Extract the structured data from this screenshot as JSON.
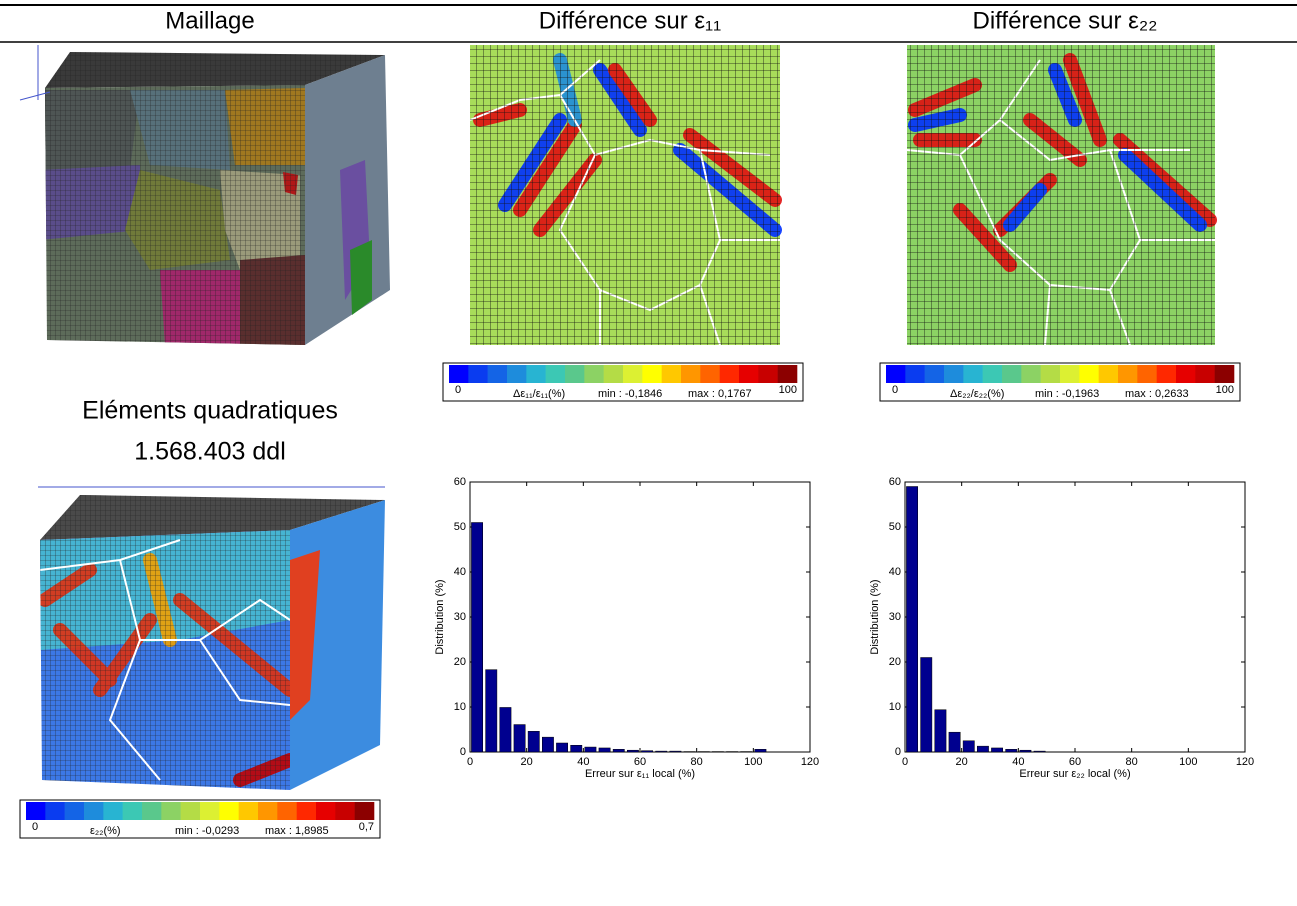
{
  "header": {
    "columns": [
      "Maillage",
      "Différence sur ε₁₁",
      "Différence sur ε₂₂"
    ]
  },
  "mesh_label": {
    "line1": "Eléments quadratiques",
    "line2": "1.568.403 ddl"
  },
  "colorbar_colors": [
    "#0000ff",
    "#0a3cf0",
    "#1464e6",
    "#1e8cdc",
    "#28b4d2",
    "#3cc8b4",
    "#5ac88c",
    "#8cd264",
    "#b4dc46",
    "#dcf032",
    "#ffff00",
    "#ffc800",
    "#ff9600",
    "#ff6400",
    "#ff2800",
    "#e60000",
    "#c80000",
    "#8c0000"
  ],
  "colorbars": [
    {
      "min_label": "0",
      "max_label": "100",
      "quantity": "Δε₁₁/ε₁₁(%)",
      "min": "min : -0,1846",
      "max": "max : 0,1767"
    },
    {
      "min_label": "0",
      "max_label": "100",
      "quantity": "Δε₂₂/ε₂₂(%)",
      "min": "min : -0,1963",
      "max": "max : 0,2633"
    },
    {
      "min_label": "0",
      "max_label": "0,7",
      "quantity": "ε₂₂(%)",
      "min": "min : -0,0293",
      "max": "max : 1,8985"
    }
  ],
  "chart_data": [
    {
      "type": "histogram",
      "xlabel": "Erreur sur ε₁₁ local (%)",
      "ylabel": "Distribution (%)",
      "color": "#00008f",
      "bins": [
        0,
        5,
        10,
        15,
        20,
        25,
        30,
        35,
        40,
        45,
        50,
        55,
        60,
        65,
        70,
        75,
        80,
        85,
        90,
        95,
        100,
        105
      ],
      "values": [
        51,
        18.3,
        9.9,
        6.1,
        4.6,
        3.3,
        2.0,
        1.5,
        1.1,
        0.9,
        0.6,
        0.4,
        0.3,
        0.2,
        0.2,
        0.1,
        0.1,
        0.1,
        0.1,
        0.1,
        0.6
      ],
      "xlim": [
        0,
        120
      ],
      "xticks": [
        0,
        20,
        40,
        60,
        80,
        100,
        120
      ],
      "ylim": [
        0,
        60
      ],
      "yticks": [
        0,
        10,
        20,
        30,
        40,
        50,
        60
      ]
    },
    {
      "type": "histogram",
      "xlabel": "Erreur sur ε₂₂ local (%)",
      "ylabel": "Distribution (%)",
      "color": "#00008f",
      "bins": [
        0,
        5,
        10,
        15,
        20,
        25,
        30,
        35,
        40,
        45,
        50
      ],
      "values": [
        59,
        21,
        9.4,
        4.4,
        2.5,
        1.3,
        0.9,
        0.6,
        0.4,
        0.2
      ],
      "xlim": [
        0,
        120
      ],
      "xticks": [
        0,
        20,
        40,
        60,
        80,
        100,
        120
      ],
      "ylim": [
        0,
        60
      ],
      "yticks": [
        0,
        10,
        20,
        30,
        40,
        50,
        60
      ]
    }
  ]
}
